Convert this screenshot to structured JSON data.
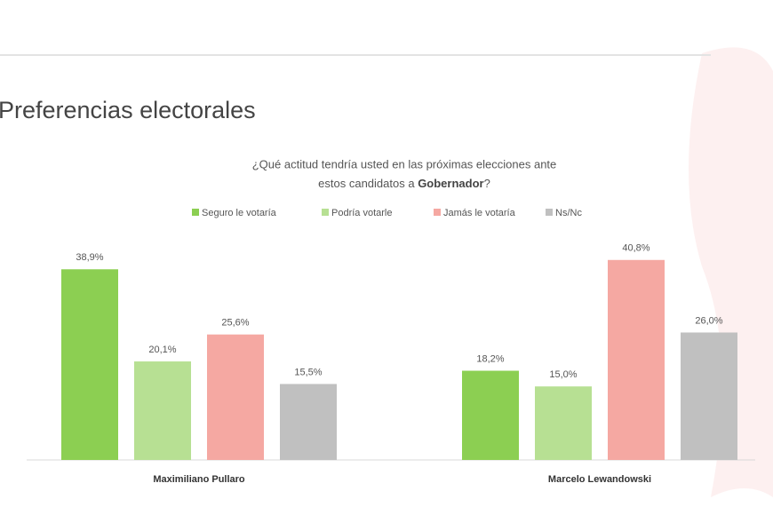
{
  "chart_data": {
    "type": "bar",
    "title": "Preferencias electorales",
    "subtitle": [
      "¿Qué actitud tendría usted en las próximas elecciones ante",
      "estos candidatos a ",
      "Gobernador",
      "?"
    ],
    "categories": [
      "Maximiliano Pullaro",
      "Marcelo Lewandowski"
    ],
    "series": [
      {
        "name": "Seguro le votaría",
        "color": "#8ccf52",
        "values": [
          38.9,
          18.2
        ],
        "value_labels": [
          "38,9%",
          "18,2%"
        ]
      },
      {
        "name": "Podría votarle",
        "color": "#b7e093",
        "values": [
          20.1,
          15.0
        ],
        "value_labels": [
          "20,1%",
          "15,0%"
        ]
      },
      {
        "name": "Jamás le votaría",
        "color": "#f5a8a2",
        "values": [
          25.6,
          40.8
        ],
        "value_labels": [
          "25,6%",
          "40,8%"
        ]
      },
      {
        "name": "Ns/Nc",
        "color": "#c0c0c0",
        "values": [
          15.5,
          26.0
        ],
        "value_labels": [
          "15,5%",
          "26,0%"
        ]
      }
    ]
  }
}
